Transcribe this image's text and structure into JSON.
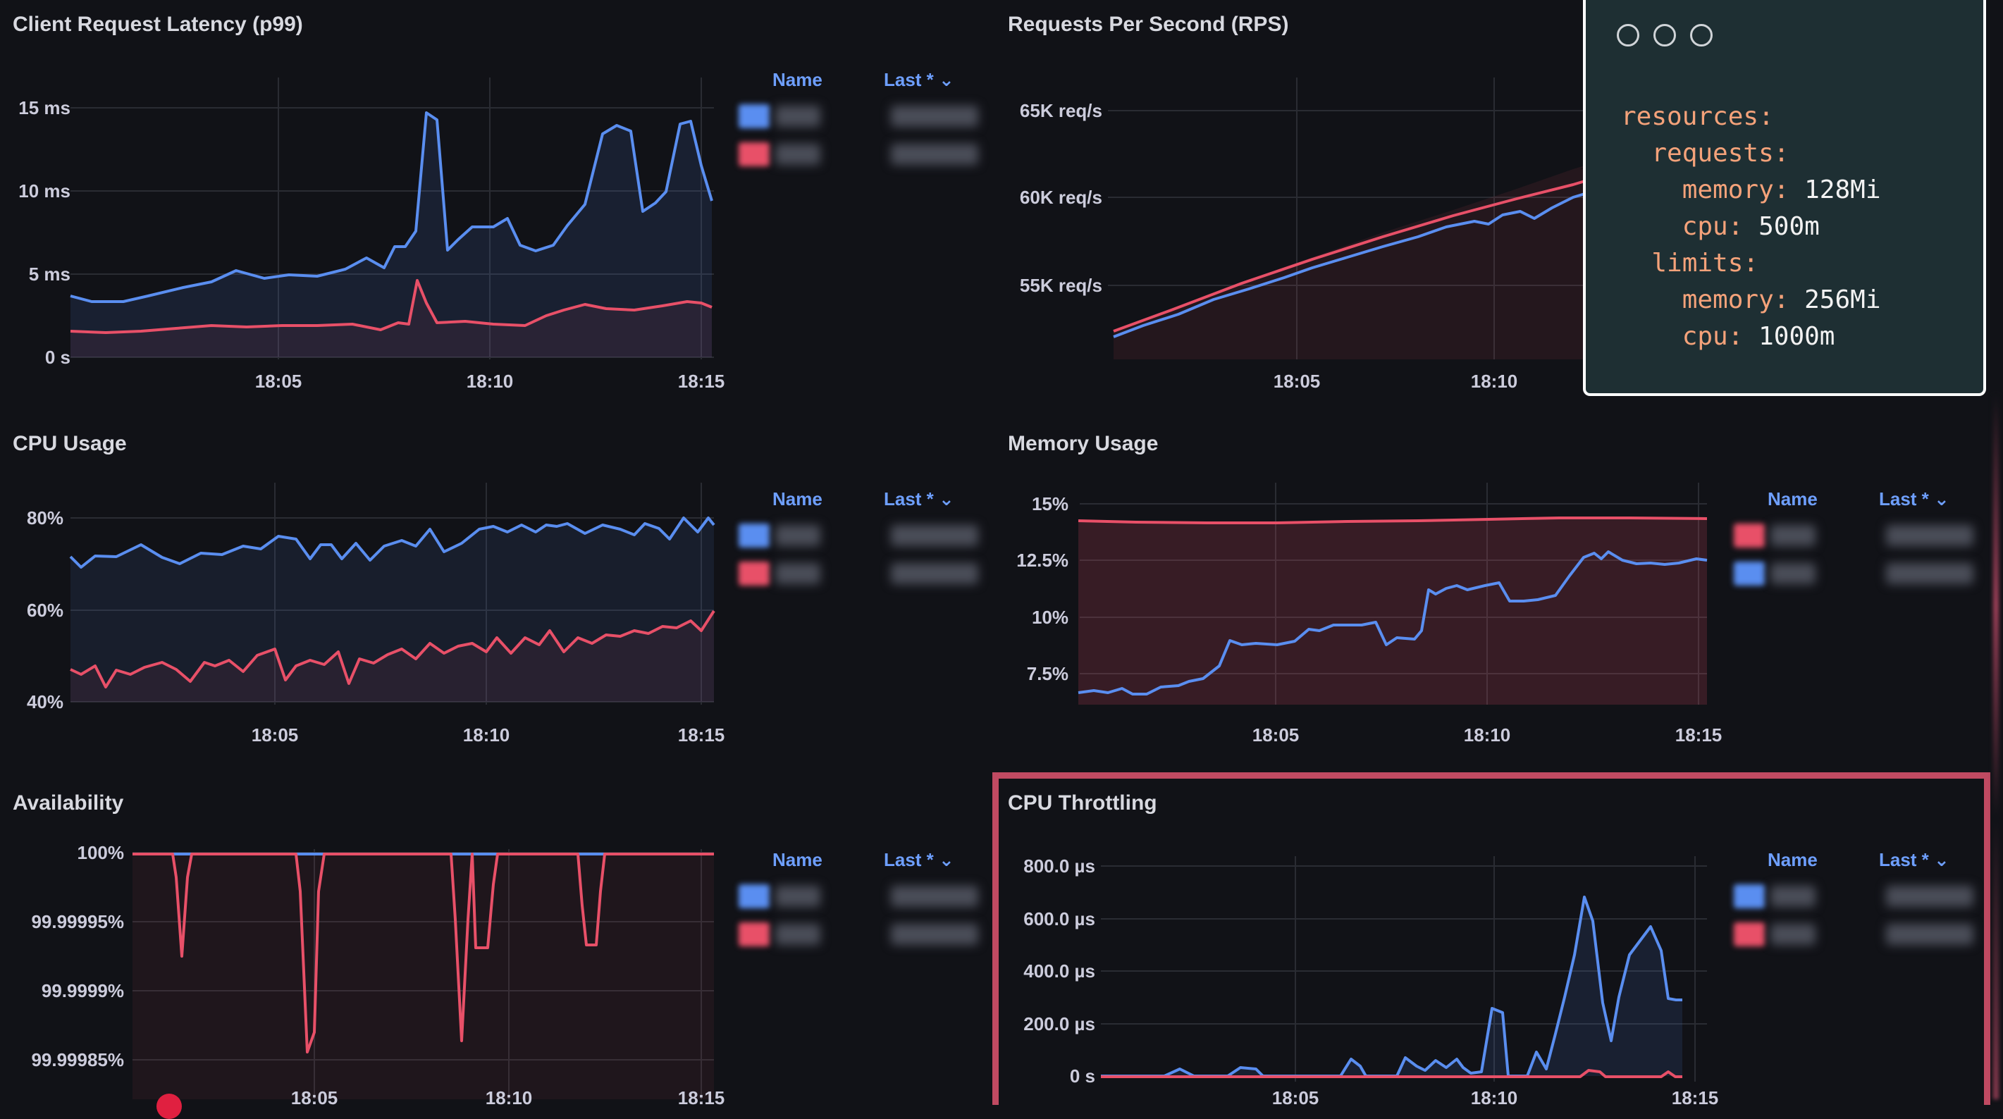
{
  "panels": [
    {
      "title": "Client Request Latency (p99)",
      "y_ticks": [
        "15 ms",
        "10 ms",
        "5 ms",
        "0 s"
      ],
      "x_ticks": [
        "18:05",
        "18:10",
        "18:15"
      ],
      "legend": {
        "name_header": "Name",
        "last_header": "Last *",
        "swatches": [
          "#5a8ef0",
          "#e85068"
        ]
      }
    },
    {
      "title": "Requests Per Second (RPS)",
      "y_ticks": [
        "65K req/s",
        "60K req/s",
        "55K req/s"
      ],
      "x_ticks": [
        "18:05",
        "18:10"
      ]
    },
    {
      "title": "CPU Usage",
      "y_ticks": [
        "80%",
        "60%",
        "40%"
      ],
      "x_ticks": [
        "18:05",
        "18:10",
        "18:15"
      ],
      "legend": {
        "name_header": "Name",
        "last_header": "Last *",
        "swatches": [
          "#5a8ef0",
          "#e85068"
        ]
      }
    },
    {
      "title": "Memory Usage",
      "y_ticks": [
        "15%",
        "12.5%",
        "10%",
        "7.5%"
      ],
      "x_ticks": [
        "18:05",
        "18:10",
        "18:15"
      ],
      "legend": {
        "name_header": "Name",
        "last_header": "Last *",
        "swatches": [
          "#e85068",
          "#5a8ef0"
        ]
      }
    },
    {
      "title": "Availability",
      "y_ticks": [
        "100%",
        "99.99995%",
        "99.9999%",
        "99.99985%"
      ],
      "x_ticks": [
        "18:05",
        "18:10",
        "18:15"
      ],
      "legend": {
        "name_header": "Name",
        "last_header": "Last *",
        "swatches": [
          "#5a8ef0",
          "#e85068"
        ]
      }
    },
    {
      "title": "CPU Throttling",
      "y_ticks": [
        "800.0 µs",
        "600.0 µs",
        "400.0 µs",
        "200.0 µs",
        "0 s"
      ],
      "x_ticks": [
        "18:05",
        "18:10",
        "18:15"
      ],
      "legend": {
        "name_header": "Name",
        "last_header": "Last *",
        "swatches": [
          "#5a8ef0",
          "#e85068"
        ]
      }
    }
  ],
  "colors": {
    "blue_series": "#5a8ef0",
    "red_series": "#e85068",
    "highlight_border": "#c04a62",
    "code_bg": "#1e2f33"
  },
  "code_window": {
    "lines": [
      {
        "key": "resources",
        "value": ""
      },
      {
        "key": "requests",
        "value": ""
      },
      {
        "key": "memory",
        "value": "128Mi"
      },
      {
        "key": "cpu",
        "value": "500m"
      },
      {
        "key": "limits",
        "value": ""
      },
      {
        "key": "memory",
        "value": "256Mi"
      },
      {
        "key": "cpu",
        "value": "1000m"
      }
    ]
  },
  "chart_data": [
    {
      "type": "line",
      "title": "Client Request Latency (p99)",
      "ylim": [
        0,
        16
      ],
      "y_unit": "ms",
      "x": [
        "18:01",
        "18:02",
        "18:03",
        "18:04",
        "18:05",
        "18:06",
        "18:07",
        "18:08",
        "18:08:30",
        "18:09",
        "18:10",
        "18:11",
        "18:12",
        "18:13",
        "18:14",
        "18:14:30",
        "18:15"
      ],
      "series": [
        {
          "values": [
            3.6,
            3.8,
            4.3,
            4.6,
            5.3,
            5.0,
            5.7,
            6.5,
            14.8,
            7.0,
            7.9,
            6.6,
            8.5,
            14.0,
            7.8,
            14.1,
            9.5
          ]
        },
        {
          "values": [
            1.5,
            1.6,
            1.7,
            1.8,
            1.9,
            1.8,
            1.9,
            2.0,
            4.6,
            2.1,
            2.2,
            2.0,
            3.1,
            2.9,
            3.1,
            3.4,
            3.1
          ]
        }
      ]
    },
    {
      "type": "line",
      "title": "Requests Per Second (RPS)",
      "ylim": [
        51,
        66
      ],
      "y_unit": "K req/s",
      "x": [
        "18:01",
        "18:03",
        "18:05",
        "18:07",
        "18:09",
        "18:11",
        "18:12"
      ],
      "series": [
        {
          "values": [
            52.2,
            54.0,
            55.8,
            57.3,
            58.8,
            60.3,
            61.8
          ]
        },
        {
          "values": [
            52.5,
            54.4,
            56.2,
            57.8,
            59.4,
            60.9,
            62.6
          ]
        }
      ]
    },
    {
      "type": "line",
      "title": "CPU Usage",
      "ylim": [
        38,
        85
      ],
      "y_unit": "%",
      "x": [
        "18:01",
        "18:02",
        "18:03",
        "18:04",
        "18:05",
        "18:06",
        "18:07",
        "18:08",
        "18:09",
        "18:10",
        "18:11",
        "18:12",
        "18:13",
        "18:14",
        "18:15"
      ],
      "series": [
        {
          "values": [
            72,
            73,
            74,
            71,
            73,
            75,
            74,
            76,
            77,
            78,
            77,
            79,
            78,
            79,
            78
          ]
        },
        {
          "values": [
            46,
            45,
            44,
            47,
            48,
            46,
            47,
            48,
            49,
            50,
            51,
            52,
            53,
            55,
            56
          ]
        }
      ]
    },
    {
      "type": "area",
      "title": "Memory Usage",
      "ylim": [
        6,
        15.5
      ],
      "y_unit": "%",
      "x": [
        "18:01",
        "18:02",
        "18:03",
        "18:04",
        "18:05",
        "18:06",
        "18:07",
        "18:08",
        "18:09",
        "18:10",
        "18:11",
        "18:12",
        "18:13",
        "18:14",
        "18:15"
      ],
      "series": [
        {
          "values": [
            14.3,
            14.3,
            14.2,
            14.2,
            14.3,
            14.3,
            14.4,
            14.4,
            14.5,
            14.5,
            14.6,
            14.6,
            14.6,
            14.5,
            14.5
          ]
        },
        {
          "values": [
            6.7,
            6.6,
            7.0,
            7.6,
            8.9,
            9.4,
            9.8,
            8.9,
            11.3,
            11.5,
            10.8,
            11.3,
            12.5,
            12.3,
            12.2
          ]
        }
      ]
    },
    {
      "type": "line",
      "title": "Availability",
      "ylim": [
        99.99985,
        100
      ],
      "y_unit": "%",
      "x": [
        "18:01",
        "18:02",
        "18:03",
        "18:04",
        "18:05",
        "18:06",
        "18:07",
        "18:08",
        "18:09",
        "18:10",
        "18:11",
        "18:12",
        "18:13",
        "18:14",
        "18:15"
      ],
      "series": [
        {
          "values": [
            100,
            100,
            100,
            100,
            100,
            100,
            100,
            100,
            100,
            100,
            100,
            100,
            100,
            100,
            100
          ]
        },
        {
          "values": [
            100,
            99.99994,
            100,
            100,
            99.99985,
            100,
            100,
            99.99986,
            99.99993,
            100,
            99.99993,
            100,
            100,
            100,
            100
          ]
        }
      ]
    },
    {
      "type": "area",
      "title": "CPU Throttling",
      "ylim": [
        0,
        850
      ],
      "y_unit": "µs",
      "x": [
        "18:01",
        "18:02",
        "18:03",
        "18:04",
        "18:05",
        "18:06",
        "18:07",
        "18:08",
        "18:09",
        "18:10",
        "18:11",
        "18:12",
        "18:13",
        "18:13:30",
        "18:14",
        "18:14:30",
        "18:15"
      ],
      "series": [
        {
          "values": [
            0,
            30,
            30,
            0,
            0,
            20,
            60,
            70,
            80,
            260,
            30,
            220,
            330,
            770,
            300,
            580,
            300
          ]
        },
        {
          "values": [
            0,
            0,
            0,
            0,
            0,
            0,
            0,
            0,
            0,
            0,
            0,
            20,
            0,
            0,
            0,
            10,
            0
          ]
        }
      ]
    }
  ]
}
